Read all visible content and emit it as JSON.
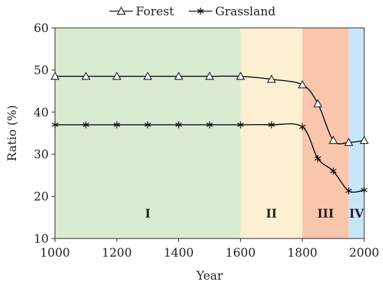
{
  "chart_data": {
    "type": "line",
    "xlabel": "Year",
    "ylabel": "Ratio (%)",
    "xlim": [
      1000,
      2000
    ],
    "ylim": [
      10,
      60
    ],
    "x_ticks": [
      1000,
      1200,
      1400,
      1600,
      1800,
      2000
    ],
    "y_ticks": [
      10,
      20,
      30,
      40,
      50,
      60
    ],
    "grid": false,
    "legend_position": "top-center",
    "series": [
      {
        "name": "Forest",
        "marker": "triangle",
        "color": "#000000",
        "x": [
          1000,
          1100,
          1200,
          1300,
          1400,
          1500,
          1600,
          1700,
          1800,
          1850,
          1900,
          1950,
          2000
        ],
        "y": [
          48.5,
          48.5,
          48.5,
          48.5,
          48.5,
          48.5,
          48.5,
          47.8,
          46.5,
          42.0,
          33.3,
          32.8,
          33.3
        ]
      },
      {
        "name": "Grassland",
        "marker": "asterisk",
        "color": "#000000",
        "x": [
          1000,
          1100,
          1200,
          1300,
          1400,
          1500,
          1600,
          1700,
          1800,
          1850,
          1900,
          1950,
          2000
        ],
        "y": [
          37.0,
          37.0,
          37.0,
          37.0,
          37.0,
          37.0,
          37.0,
          37.0,
          36.5,
          29.0,
          26.0,
          21.3,
          21.5
        ]
      }
    ],
    "periods": [
      {
        "label": "I",
        "from": 1000,
        "to": 1600,
        "color": "#d9ecd2"
      },
      {
        "label": "II",
        "from": 1600,
        "to": 1800,
        "color": "#fdefd1"
      },
      {
        "label": "III",
        "from": 1800,
        "to": 1950,
        "color": "#f8c5ad"
      },
      {
        "label": "IV",
        "from": 1950,
        "to": 2000,
        "color": "#c9e6f8"
      }
    ]
  }
}
